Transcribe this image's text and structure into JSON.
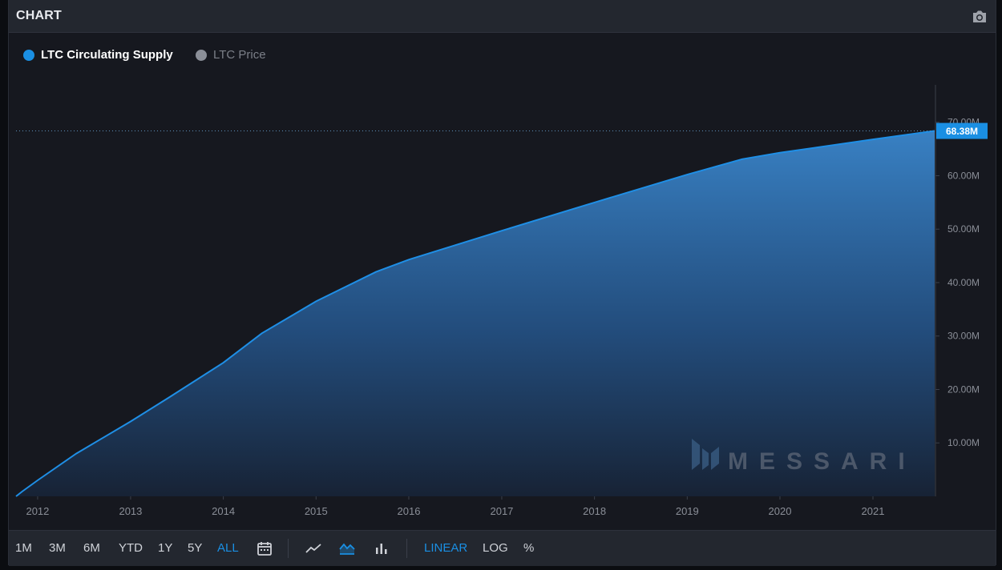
{
  "header": {
    "title": "CHART",
    "camera_icon": "camera-icon"
  },
  "colors": {
    "accent": "#1a8fe3",
    "line": "#1f8fe6",
    "muted": "#8b8f98",
    "axis_text": "#8a8e97",
    "bg": "#16181f"
  },
  "legend": [
    {
      "label": "LTC Circulating Supply",
      "color": "#1a8fe3",
      "active": true
    },
    {
      "label": "LTC Price",
      "color": "#8b8f98",
      "active": false
    }
  ],
  "chart_data": {
    "type": "area",
    "series": [
      {
        "name": "LTC Circulating Supply",
        "points": [
          [
            "2011-10-08",
            0.0
          ],
          [
            "2011-11-01",
            0.9
          ],
          [
            "2012-01-01",
            3.0
          ],
          [
            "2012-06-01",
            8.0
          ],
          [
            "2013-01-01",
            14.0
          ],
          [
            "2013-06-01",
            18.5
          ],
          [
            "2014-01-01",
            25.0
          ],
          [
            "2014-06-01",
            30.5
          ],
          [
            "2015-01-01",
            36.5
          ],
          [
            "2015-08-25",
            42.0
          ],
          [
            "2016-01-01",
            44.3
          ],
          [
            "2017-01-01",
            49.7
          ],
          [
            "2018-01-01",
            55.0
          ],
          [
            "2019-01-01",
            60.2
          ],
          [
            "2019-08-05",
            63.1
          ],
          [
            "2020-01-01",
            64.3
          ],
          [
            "2021-01-01",
            66.8
          ],
          [
            "2021-09-01",
            68.38
          ]
        ]
      }
    ],
    "x_ticks": [
      "2012",
      "2013",
      "2014",
      "2015",
      "2016",
      "2017",
      "2018",
      "2019",
      "2020",
      "2021"
    ],
    "y_ticks": [
      {
        "value": 10,
        "label": "10.00M"
      },
      {
        "value": 20,
        "label": "20.00M"
      },
      {
        "value": 30,
        "label": "30.00M"
      },
      {
        "value": 40,
        "label": "40.00M"
      },
      {
        "value": 50,
        "label": "50.00M"
      },
      {
        "value": 60,
        "label": "60.00M"
      },
      {
        "value": 70,
        "label": "70.00M"
      }
    ],
    "y_unit": "M",
    "ylim": [
      0,
      77
    ],
    "xlim": [
      "2011-10-08",
      "2021-09-01"
    ],
    "last_value_label": "68.38M",
    "last_value": 68.38,
    "watermark": "MESSARI",
    "grid": false,
    "legend_position": "top-left"
  },
  "toolbar": {
    "ranges": [
      {
        "label": "1M",
        "active": false
      },
      {
        "label": "3M",
        "active": false
      },
      {
        "label": "6M",
        "active": false
      },
      {
        "label": "YTD",
        "active": false
      },
      {
        "label": "1Y",
        "active": false
      },
      {
        "label": "5Y",
        "active": false
      },
      {
        "label": "ALL",
        "active": true
      }
    ],
    "calendar_icon": "calendar-icon",
    "chart_types": [
      {
        "icon": "line-chart-icon",
        "active": false
      },
      {
        "icon": "area-chart-icon",
        "active": true
      },
      {
        "icon": "bar-chart-icon",
        "active": false
      }
    ],
    "scales": [
      {
        "label": "LINEAR",
        "active": true
      },
      {
        "label": "LOG",
        "active": false
      },
      {
        "label": "%",
        "active": false
      }
    ]
  }
}
